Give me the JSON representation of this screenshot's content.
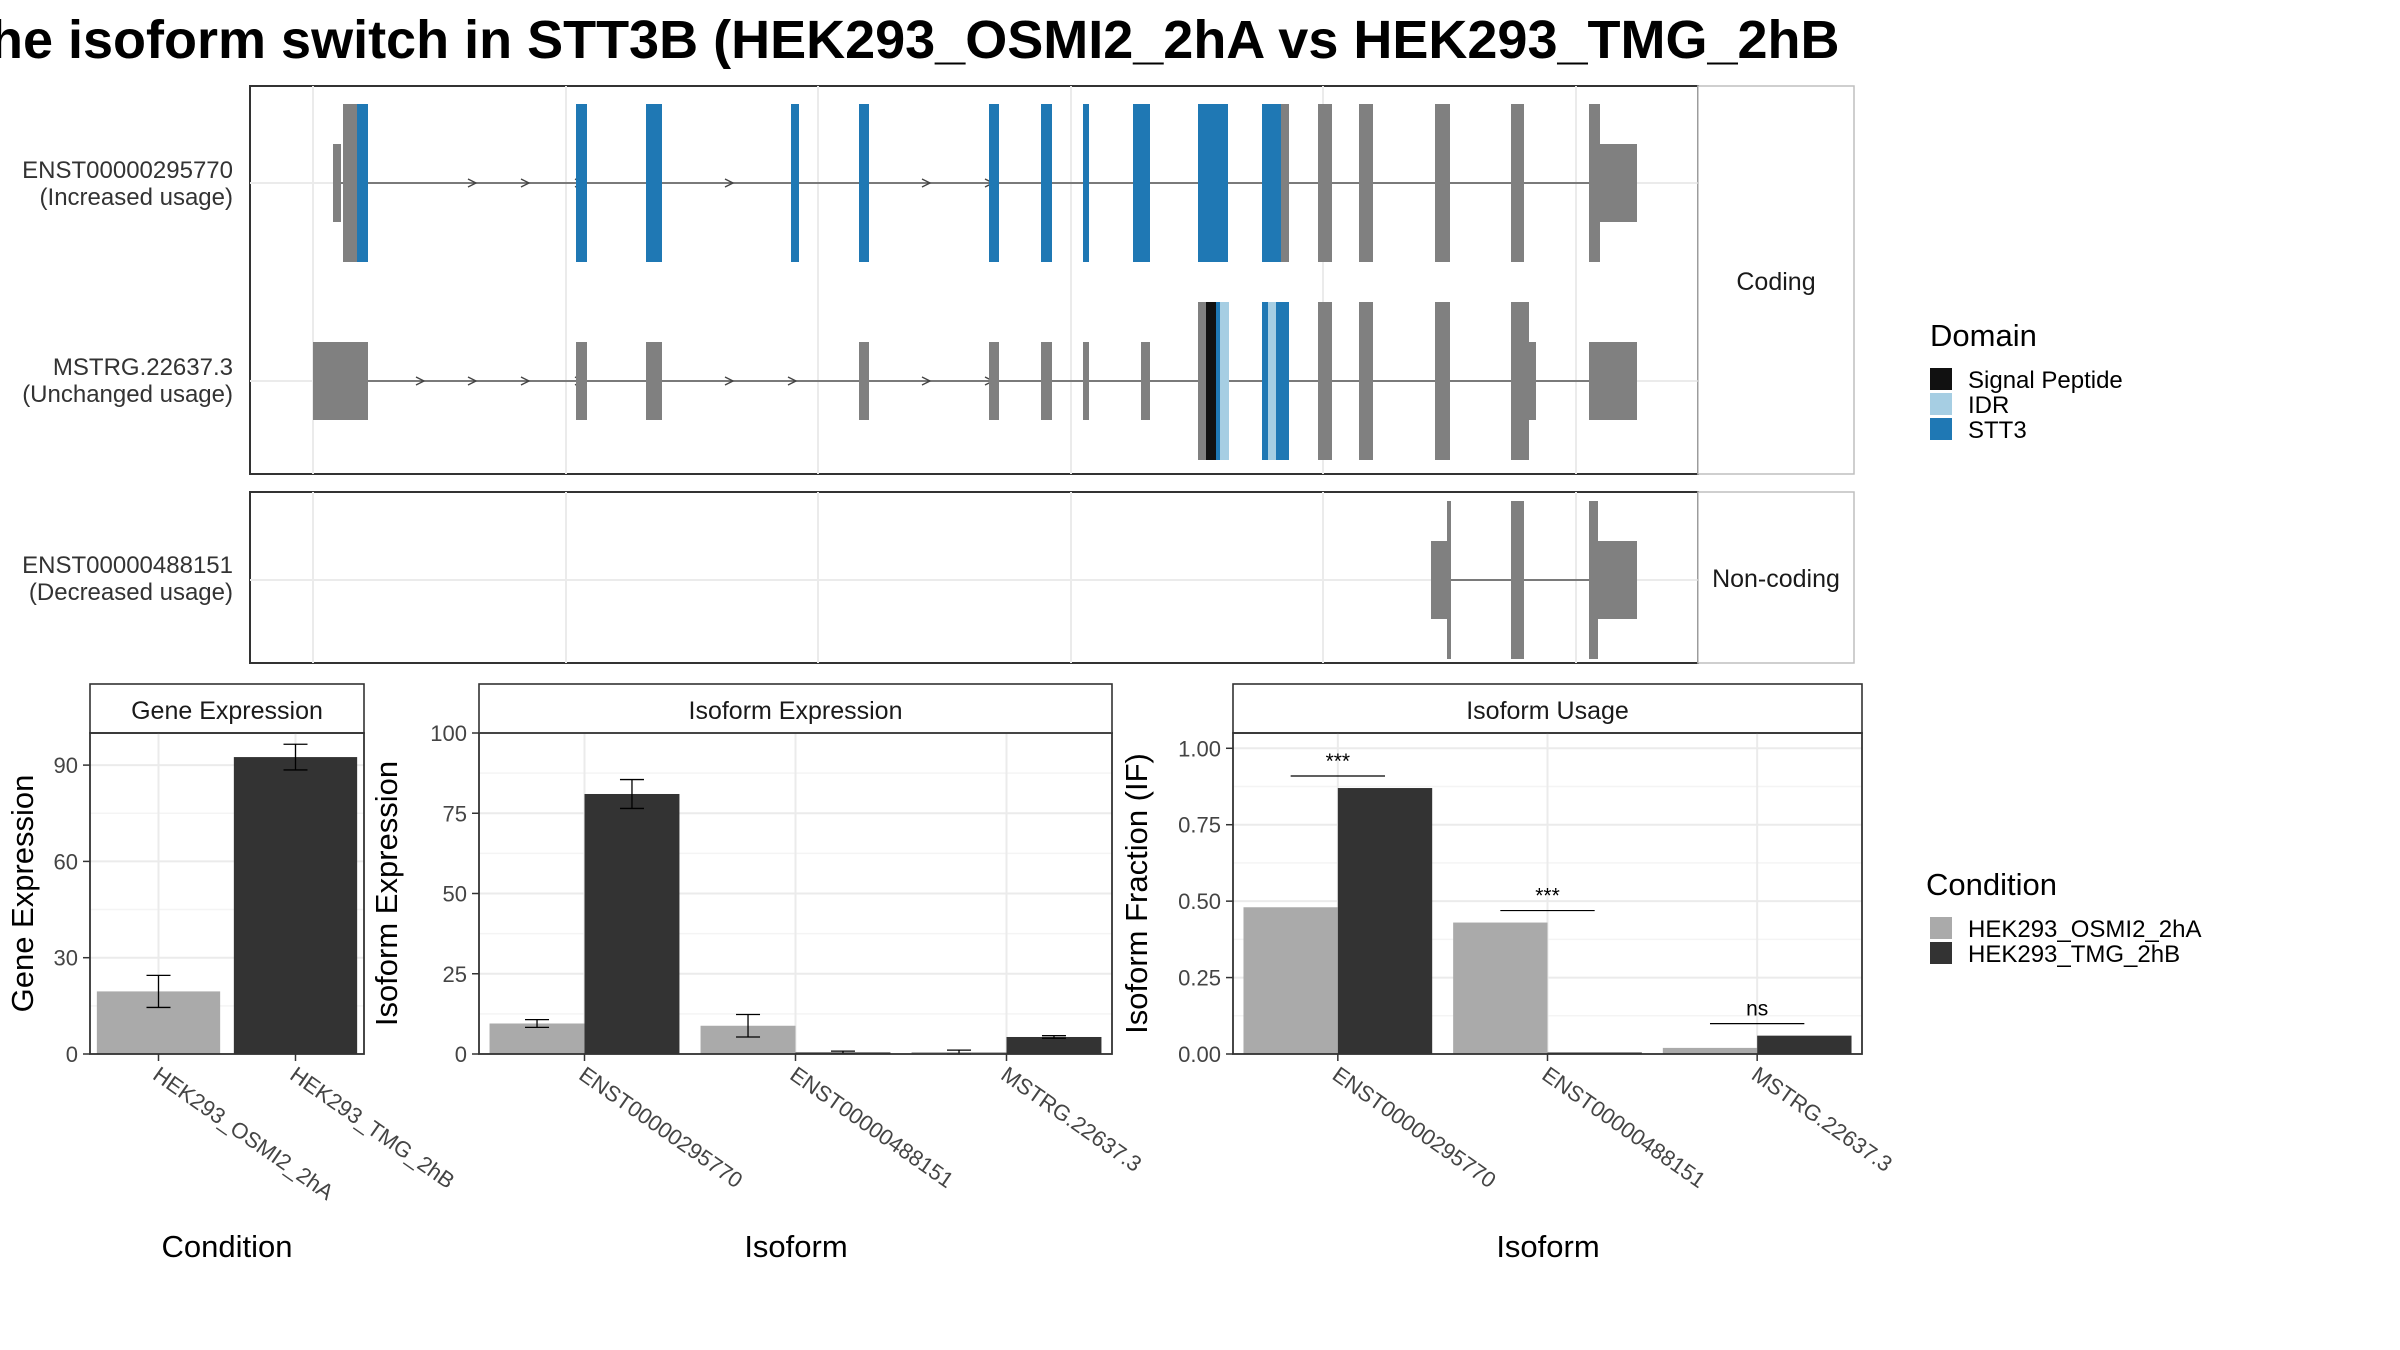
{
  "title": "he isoform switch in STT3B (HEK293_OSMI2_2hA vs HEK293_TMG_2hB",
  "colors": {
    "exon_default": "#808080",
    "signal_peptide": "#111111",
    "idr": "#a6cee3",
    "stt3": "#1f78b4",
    "condition_a": "#aaaaaa",
    "condition_b": "#333333"
  },
  "transcript_panel": {
    "groups": [
      {
        "strip": "Coding",
        "transcripts": [
          {
            "id": "ENST00000295770",
            "note": "(Increased usage)"
          },
          {
            "id": "MSTRG.22637.3",
            "note": "(Unchanged usage)"
          }
        ]
      },
      {
        "strip": "Non-coding",
        "transcripts": [
          {
            "id": "ENST00000488151",
            "note": "(Decreased usage)"
          }
        ]
      }
    ]
  },
  "legends": {
    "domain": {
      "title": "Domain",
      "items": [
        "Signal Peptide",
        "IDR",
        "STT3"
      ]
    },
    "condition": {
      "title": "Condition",
      "items": [
        "HEK293_OSMI2_2hA",
        "HEK293_TMG_2hB"
      ]
    }
  },
  "chart_data": [
    {
      "type": "bar",
      "title": "Gene Expression",
      "xlabel": "Condition",
      "ylabel": "Gene Expression",
      "categories": [
        "HEK293_OSMI2_2hA",
        "HEK293_TMG_2hB"
      ],
      "values": [
        19.5,
        92.5
      ],
      "error": [
        5,
        4
      ],
      "yticks": [
        0,
        30,
        60,
        90
      ],
      "ylim": [
        0,
        100
      ],
      "grid": true
    },
    {
      "type": "bar",
      "title": "Isoform Expression",
      "xlabel": "Isoform",
      "ylabel": "Isoform Expression",
      "categories": [
        "ENST00000295770",
        "ENST00000488151",
        "MSTRG.22637.3"
      ],
      "series": [
        {
          "name": "HEK293_OSMI2_2hA",
          "values": [
            9.5,
            8.8,
            0.6
          ],
          "error": [
            1.2,
            3.5,
            0.6
          ]
        },
        {
          "name": "HEK293_TMG_2hB",
          "values": [
            81,
            0.5,
            5.3
          ],
          "error": [
            4.5,
            0.4,
            0.4
          ]
        }
      ],
      "yticks": [
        0,
        25,
        50,
        75,
        100
      ],
      "ylim": [
        0,
        100
      ],
      "grid": true
    },
    {
      "type": "bar",
      "title": "Isoform Usage",
      "xlabel": "Isoform",
      "ylabel": "Isoform Fraction (IF)",
      "categories": [
        "ENST00000295770",
        "ENST00000488151",
        "MSTRG.22637.3"
      ],
      "series": [
        {
          "name": "HEK293_OSMI2_2hA",
          "values": [
            0.48,
            0.43,
            0.02
          ]
        },
        {
          "name": "HEK293_TMG_2hB",
          "values": [
            0.87,
            0.005,
            0.06
          ]
        }
      ],
      "significance": [
        "***",
        "***",
        "ns"
      ],
      "yticks": [
        "0.00",
        "0.25",
        "0.50",
        "0.75",
        "1.00"
      ],
      "ylim": [
        0,
        1.05
      ],
      "grid": true
    }
  ]
}
